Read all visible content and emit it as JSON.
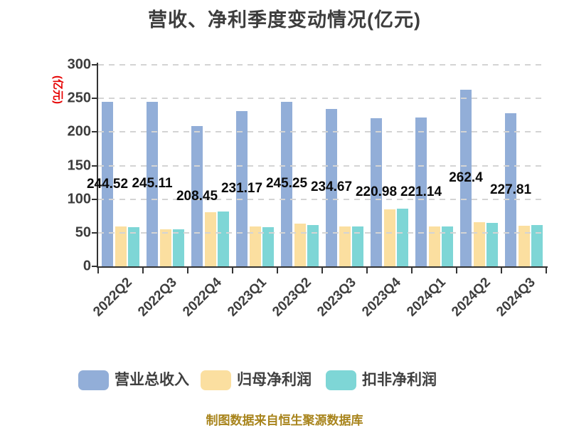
{
  "chart_data": {
    "type": "bar",
    "title": "营收、净利季度变动情况(亿元)",
    "y_axis_name": "(亿元)",
    "y_axis_name_color": "#e60000",
    "categories": [
      "2022Q2",
      "2022Q3",
      "2022Q4",
      "2023Q1",
      "2023Q2",
      "2023Q3",
      "2023Q4",
      "2024Q1",
      "2024Q2",
      "2024Q3"
    ],
    "series": [
      {
        "name": "营业总收入",
        "color": "#92aed8",
        "values": [
          244.52,
          245.11,
          208.45,
          231.17,
          245.25,
          234.67,
          220.98,
          221.14,
          262.4,
          227.81
        ],
        "labels": [
          "244.52",
          "245.11",
          "208.45",
          "231.17",
          "245.25",
          "234.67",
          "220.98",
          "221.14",
          "262.4",
          "227.81"
        ]
      },
      {
        "name": "归母净利润",
        "color": "#fbdfa0",
        "values": [
          59,
          55,
          81,
          59,
          64,
          59,
          85,
          59,
          66,
          60
        ]
      },
      {
        "name": "扣非净利润",
        "color": "#7ed6d6",
        "values": [
          58,
          55,
          82,
          58,
          62,
          59,
          86,
          59,
          65,
          61
        ]
      }
    ],
    "ylim": [
      0,
      300
    ],
    "yticks": [
      0,
      50,
      100,
      150,
      200,
      250,
      300
    ],
    "grid": "dashed-horizontal",
    "legend_position": "bottom",
    "footer": "制图数据来自恒生聚源数据库",
    "footer_color": "#a8841c"
  }
}
